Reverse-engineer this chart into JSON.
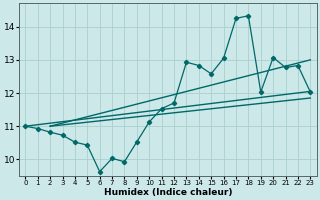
{
  "xlabel": "Humidex (Indice chaleur)",
  "ylabel": "",
  "bg_color": "#cce8e8",
  "grid_color": "#aacfcf",
  "line_color": "#006868",
  "xlim": [
    -0.5,
    23.5
  ],
  "ylim": [
    9.5,
    14.7
  ],
  "xticks": [
    0,
    1,
    2,
    3,
    4,
    5,
    6,
    7,
    8,
    9,
    10,
    11,
    12,
    13,
    14,
    15,
    16,
    17,
    18,
    19,
    20,
    21,
    22,
    23
  ],
  "yticks": [
    10,
    11,
    12,
    13,
    14
  ],
  "line1_x": [
    0,
    1,
    2,
    3,
    4,
    5,
    6,
    7,
    8,
    9,
    10,
    11,
    12,
    13,
    14,
    15,
    16,
    17,
    18,
    19,
    20,
    21,
    22,
    23
  ],
  "line1_y": [
    11.0,
    10.93,
    10.82,
    10.73,
    10.52,
    10.43,
    9.63,
    10.03,
    9.93,
    10.53,
    11.13,
    11.53,
    11.7,
    12.93,
    12.83,
    12.58,
    13.05,
    14.25,
    14.33,
    12.03,
    13.07,
    12.77,
    12.83,
    12.03
  ],
  "line2_x": [
    0,
    23
  ],
  "line2_y": [
    11.0,
    12.05
  ],
  "line3_x": [
    2,
    23
  ],
  "line3_y": [
    11.0,
    13.0
  ],
  "line4_x": [
    2,
    23
  ],
  "line4_y": [
    11.0,
    11.85
  ]
}
